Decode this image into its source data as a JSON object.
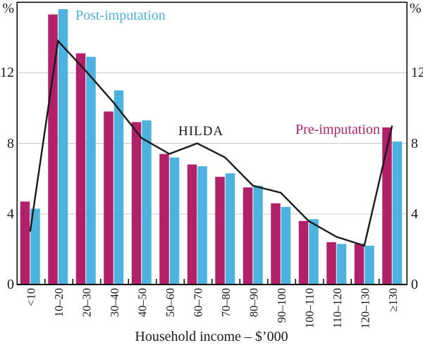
{
  "chart_data": {
    "type": "bar",
    "title": "",
    "categories": [
      "<10",
      "10–20",
      "20–30",
      "30–40",
      "40–50",
      "50–60",
      "60–70",
      "70–80",
      "80–90",
      "90–100",
      "100–110",
      "110–120",
      "120–130",
      "≥130"
    ],
    "series": [
      {
        "name": "Pre-imputation",
        "color": "#b12169",
        "values": [
          4.7,
          15.3,
          13.1,
          9.8,
          9.2,
          7.4,
          6.8,
          6.1,
          5.5,
          4.6,
          3.6,
          2.4,
          2.3,
          8.9
        ]
      },
      {
        "name": "Post-imputation",
        "color": "#4db3de",
        "values": [
          4.3,
          15.6,
          12.9,
          11.0,
          9.3,
          7.2,
          6.7,
          6.3,
          5.6,
          4.4,
          3.7,
          2.3,
          2.2,
          8.1
        ]
      }
    ],
    "line_series": {
      "name": "HILDA",
      "color": "#1a1a1a",
      "values": [
        3.0,
        13.8,
        12.1,
        10.3,
        8.3,
        7.4,
        8.0,
        7.2,
        5.6,
        5.2,
        3.6,
        2.7,
        2.2,
        9.0
      ]
    },
    "xlabel": "Household income – $’000",
    "ylabel_left": "%",
    "ylabel_right": "%",
    "yticks": [
      0,
      4,
      8,
      12
    ],
    "ylim": [
      0,
      16
    ],
    "grid": "horizontal",
    "gridline_color": "#c9c9c9",
    "frame_color": "#000000",
    "legend_position": "inline-annotations"
  }
}
